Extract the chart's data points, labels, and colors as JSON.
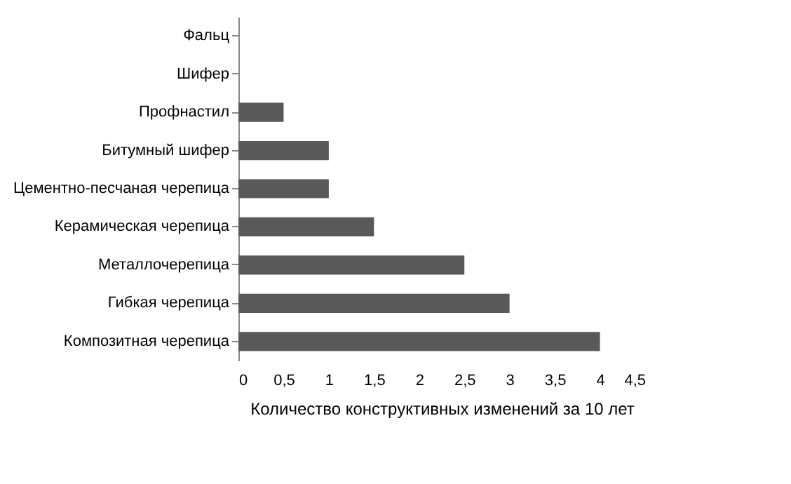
{
  "chart_data": {
    "type": "bar",
    "orientation": "horizontal",
    "xlabel": "Количество конструктивных изменений за 10 лет",
    "categories": [
      "Фальц",
      "Шифер",
      "Профнастил",
      "Битумный шифер",
      "Цементно-песчаная черепица",
      "Керамическая черепица",
      "Металлочерепица",
      "Гибкая черепица",
      "Композитная черепица"
    ],
    "values": [
      0,
      0,
      0.5,
      1,
      1,
      1.5,
      2.5,
      3,
      4
    ],
    "color": "#595959",
    "xlim": [
      0,
      4.5
    ],
    "xticks": [
      0,
      {
        "value": 0.5,
        "label": "0,5"
      },
      1,
      {
        "value": 1.5,
        "label": "1,5"
      },
      2,
      {
        "value": 2.5,
        "label": "2,5"
      },
      3,
      {
        "value": 3.5,
        "label": "3,5"
      },
      4,
      {
        "value": 4.5,
        "label": "4,5"
      }
    ],
    "grid": false
  }
}
